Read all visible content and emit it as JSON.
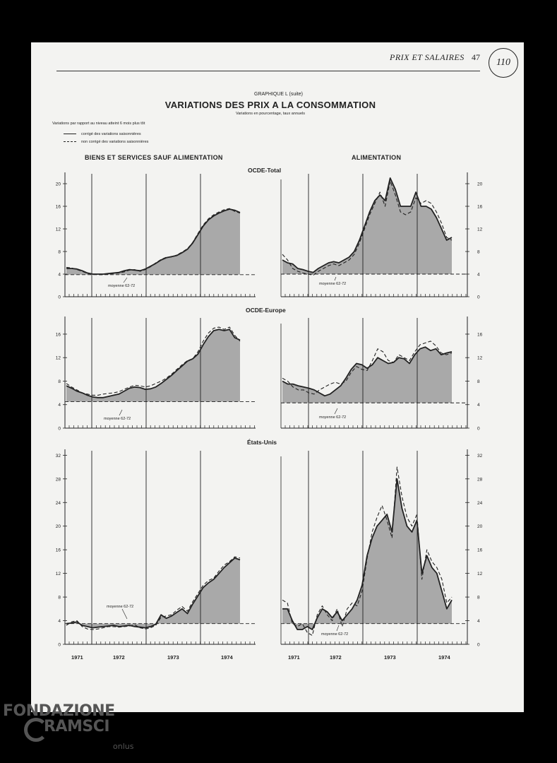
{
  "header": {
    "running_title": "PRIX ET SALAIRES",
    "page_number": "47",
    "stamp": "110"
  },
  "graph": {
    "label": "GRAPHIQUE L (suite)",
    "title": "VARIATIONS DES PRIX A LA CONSOMMATION",
    "subtitle": "Variations en pourcentage, taux annuels",
    "y_note": "Variations par rapport au niveau atteint 6 mois plus tôt",
    "legend": [
      {
        "style": "solid",
        "label": "corrigé des variations saisonnières"
      },
      {
        "style": "dashed",
        "label": "non corrigé des variations saisonnières"
      }
    ],
    "columns": [
      "BIENS ET SERVICES SAUF ALIMENTATION",
      "ALIMENTATION"
    ],
    "regions": [
      "OCDE-Total",
      "OCDE-Europe",
      "États-Unis"
    ],
    "average_label": "moyenne 62-72",
    "years": [
      "1971",
      "1972",
      "1973",
      "1974"
    ]
  },
  "colors": {
    "fill": "#a9a9a9",
    "line": "#222222",
    "page": "#f3f3f1"
  },
  "chart_data": [
    {
      "type": "line",
      "region": "OCDE-Total",
      "column": "BIENS ET SERVICES SAUF ALIMENTATION",
      "ylim": [
        0,
        22
      ],
      "yticks": [
        0,
        4,
        8,
        12,
        16,
        20
      ],
      "average": 3.9,
      "series": [
        {
          "name": "corrigé des variations saisonnières",
          "values": [
            5.0,
            5.0,
            4.9,
            4.6,
            4.2,
            4.0,
            4.0,
            4.0,
            4.1,
            4.2,
            4.3,
            4.6,
            4.8,
            4.7,
            4.6,
            4.9,
            5.4,
            5.9,
            6.5,
            6.9,
            7.1,
            7.3,
            7.8,
            8.4,
            9.5,
            11.0,
            12.5,
            13.6,
            14.3,
            14.8,
            15.2,
            15.5,
            15.3,
            14.9
          ]
        },
        {
          "name": "non corrigé des variations saisonnières",
          "values": [
            5.2,
            5.1,
            4.8,
            4.5,
            4.1,
            4.0,
            3.9,
            3.9,
            4.0,
            4.1,
            4.2,
            4.4,
            4.7,
            4.8,
            4.5,
            4.8,
            5.3,
            6.0,
            6.6,
            7.0,
            7.0,
            7.4,
            7.9,
            8.5,
            9.6,
            11.2,
            12.7,
            13.8,
            14.5,
            15.0,
            15.4,
            15.6,
            15.1,
            14.8
          ]
        }
      ]
    },
    {
      "type": "line",
      "region": "OCDE-Total",
      "column": "ALIMENTATION",
      "ylim": [
        0,
        22
      ],
      "yticks": [
        0,
        4,
        8,
        12,
        16,
        20
      ],
      "average": 4.0,
      "series": [
        {
          "name": "corrigé des variations saisonnières",
          "values": [
            6.5,
            6.0,
            5.8,
            5.0,
            4.8,
            4.5,
            4.3,
            5.0,
            5.5,
            6.0,
            6.2,
            6.0,
            6.5,
            7.0,
            8.0,
            10.0,
            12.5,
            15.0,
            17.0,
            18.0,
            17.0,
            21.0,
            19.0,
            16.0,
            16.0,
            16.0,
            18.5,
            16.0,
            16.0,
            15.5,
            14.0,
            12.0,
            10.0,
            10.5
          ]
        },
        {
          "name": "non corrigé des variations saisonnières",
          "values": [
            7.5,
            6.5,
            5.0,
            4.5,
            4.2,
            4.0,
            3.8,
            4.5,
            5.0,
            5.5,
            5.8,
            5.5,
            6.0,
            6.5,
            7.5,
            9.5,
            12.0,
            14.5,
            16.5,
            18.5,
            16.0,
            20.5,
            18.0,
            15.0,
            14.5,
            15.0,
            17.5,
            16.5,
            17.0,
            16.5,
            15.0,
            13.0,
            10.5,
            10.0
          ]
        }
      ]
    },
    {
      "type": "line",
      "region": "OCDE-Europe",
      "column": "BIENS ET SERVICES SAUF ALIMENTATION",
      "ylim": [
        0,
        19
      ],
      "yticks": [
        0,
        4,
        8,
        12,
        16
      ],
      "average": 4.5,
      "series": [
        {
          "name": "corrigé des variations saisonnières",
          "values": [
            7.2,
            6.8,
            6.3,
            6.0,
            5.6,
            5.3,
            5.2,
            5.2,
            5.4,
            5.6,
            5.8,
            6.3,
            6.8,
            7.0,
            6.9,
            6.6,
            6.7,
            7.0,
            7.6,
            8.3,
            9.0,
            9.8,
            10.6,
            11.4,
            11.8,
            12.6,
            14.2,
            15.6,
            16.6,
            16.8,
            16.6,
            16.8,
            15.4,
            15.0
          ]
        },
        {
          "name": "non corrigé des variations saisonnières",
          "values": [
            7.6,
            7.0,
            6.5,
            6.0,
            5.8,
            5.6,
            5.6,
            5.8,
            5.9,
            6.0,
            6.2,
            6.6,
            7.0,
            7.3,
            7.2,
            7.0,
            7.2,
            7.6,
            8.0,
            8.5,
            9.2,
            10.0,
            10.8,
            11.5,
            11.8,
            13.0,
            14.8,
            16.2,
            17.0,
            17.2,
            16.8,
            17.2,
            15.8,
            14.8
          ]
        }
      ]
    },
    {
      "type": "line",
      "region": "OCDE-Europe",
      "column": "ALIMENTATION",
      "ylim": [
        0,
        19
      ],
      "yticks": [
        0,
        4,
        8,
        12,
        16
      ],
      "average": 4.3,
      "series": [
        {
          "name": "corrigé des variations saisonnières",
          "values": [
            8.0,
            7.5,
            7.5,
            7.2,
            7.0,
            6.8,
            6.5,
            6.0,
            5.5,
            5.8,
            6.5,
            7.2,
            8.5,
            10.0,
            11.0,
            10.8,
            10.2,
            10.8,
            12.0,
            11.5,
            11.0,
            11.2,
            12.0,
            11.8,
            11.0,
            12.5,
            13.5,
            13.8,
            13.2,
            13.5,
            12.5,
            12.8,
            13.0
          ]
        },
        {
          "name": "non corrigé des variations saisonnières",
          "values": [
            8.5,
            8.0,
            7.0,
            6.5,
            6.5,
            6.0,
            5.8,
            6.5,
            7.0,
            7.5,
            7.8,
            7.5,
            8.0,
            9.5,
            10.5,
            10.0,
            9.8,
            11.5,
            13.5,
            13.0,
            11.5,
            11.2,
            12.5,
            12.0,
            11.5,
            13.0,
            14.2,
            14.5,
            14.8,
            14.0,
            12.8,
            12.5,
            12.8
          ]
        }
      ]
    },
    {
      "type": "line",
      "region": "États-Unis",
      "column": "BIENS ET SERVICES SAUF ALIMENTATION",
      "ylim": [
        0,
        33
      ],
      "yticks": [
        0,
        4,
        8,
        12,
        16,
        20,
        24,
        28,
        32
      ],
      "average": 3.5,
      "series": [
        {
          "name": "corrigé des variations saisonnières",
          "values": [
            3.5,
            3.6,
            3.8,
            3.2,
            3.0,
            2.8,
            2.9,
            3.0,
            3.1,
            3.2,
            3.0,
            3.1,
            3.2,
            3.0,
            2.9,
            2.8,
            3.0,
            3.4,
            5.0,
            4.4,
            4.8,
            5.4,
            6.0,
            5.2,
            6.8,
            8.2,
            9.6,
            10.4,
            11.0,
            12.0,
            13.0,
            13.8,
            14.6,
            14.3
          ]
        },
        {
          "name": "non corrigé des variations saisonnières",
          "values": [
            3.2,
            3.8,
            4.0,
            3.0,
            2.6,
            2.5,
            2.6,
            2.8,
            3.0,
            3.0,
            2.9,
            3.0,
            3.1,
            3.3,
            2.8,
            2.6,
            2.8,
            3.2,
            4.6,
            4.8,
            5.0,
            5.8,
            6.4,
            5.6,
            7.2,
            8.6,
            10.0,
            10.8,
            11.2,
            12.4,
            13.4,
            14.0,
            14.8,
            14.6
          ]
        }
      ]
    },
    {
      "type": "line",
      "region": "États-Unis",
      "column": "ALIMENTATION",
      "ylim": [
        0,
        33
      ],
      "yticks": [
        0,
        4,
        8,
        12,
        16,
        20,
        24,
        28,
        32
      ],
      "average": 3.5,
      "series": [
        {
          "name": "corrigé des variations saisonnières",
          "values": [
            6.0,
            6.0,
            4.0,
            2.5,
            2.5,
            3.0,
            2.5,
            4.5,
            6.0,
            5.5,
            4.5,
            5.5,
            4.0,
            5.0,
            6.0,
            7.5,
            10.0,
            15.0,
            18.0,
            20.0,
            21.0,
            22.0,
            19.0,
            28.0,
            23.0,
            20.0,
            19.0,
            21.0,
            12.0,
            15.0,
            13.0,
            12.0,
            9.0,
            6.0,
            7.5
          ]
        },
        {
          "name": "non corrigé des variations saisonnières",
          "values": [
            7.5,
            7.0,
            3.5,
            3.0,
            3.5,
            2.0,
            1.5,
            5.0,
            6.5,
            5.0,
            4.0,
            6.0,
            3.0,
            6.0,
            7.0,
            6.5,
            9.0,
            14.5,
            19.0,
            21.5,
            23.5,
            21.0,
            18.0,
            30.0,
            25.0,
            21.5,
            20.0,
            22.0,
            11.0,
            16.0,
            14.0,
            13.0,
            11.0,
            7.0,
            8.0
          ]
        }
      ]
    }
  ]
}
